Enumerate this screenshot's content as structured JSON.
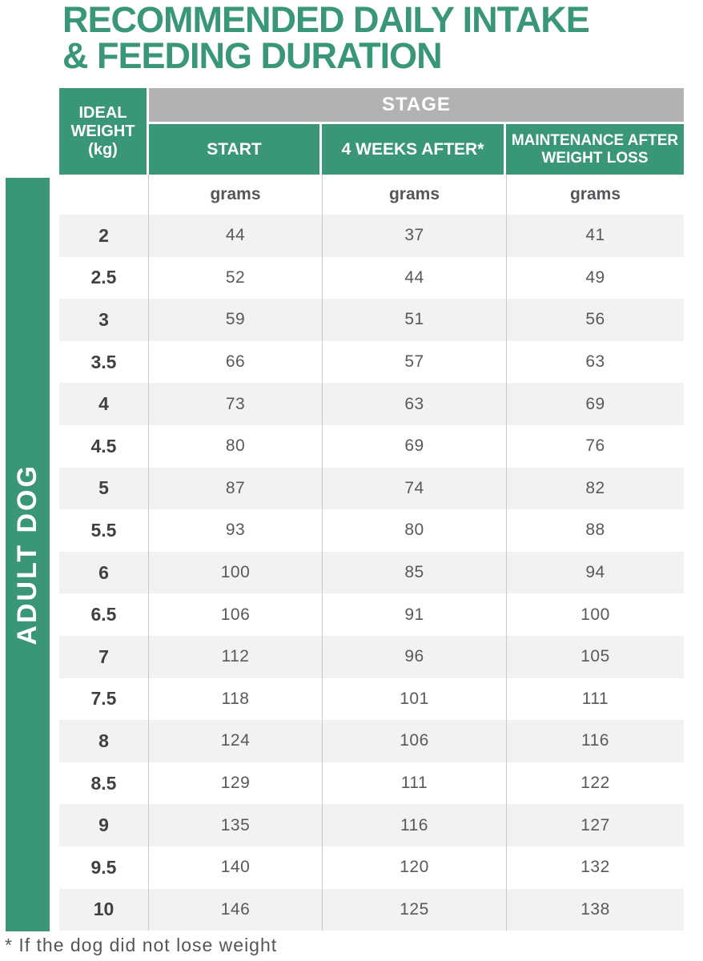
{
  "page": {
    "title_line1": "RECOMMENDED DAILY INTAKE",
    "title_line2": "& FEEDING DURATION",
    "side_label": "ADULT DOG",
    "footnote": "* If the dog did not lose weight"
  },
  "table": {
    "corner_lines": [
      "IDEAL",
      "WEIGHT",
      "(kg)"
    ],
    "stage_label": "STAGE",
    "columns": [
      "START",
      "4 WEEKS AFTER*",
      "MAINTENANCE AFTER WEIGHT LOSS"
    ],
    "unit_row": [
      "grams",
      "grams",
      "grams"
    ],
    "rows": [
      {
        "weight": "2",
        "values": [
          "44",
          "37",
          "41"
        ]
      },
      {
        "weight": "2.5",
        "values": [
          "52",
          "44",
          "49"
        ]
      },
      {
        "weight": "3",
        "values": [
          "59",
          "51",
          "56"
        ]
      },
      {
        "weight": "3.5",
        "values": [
          "66",
          "57",
          "63"
        ]
      },
      {
        "weight": "4",
        "values": [
          "73",
          "63",
          "69"
        ]
      },
      {
        "weight": "4.5",
        "values": [
          "80",
          "69",
          "76"
        ]
      },
      {
        "weight": "5",
        "values": [
          "87",
          "74",
          "82"
        ]
      },
      {
        "weight": "5.5",
        "values": [
          "93",
          "80",
          "88"
        ]
      },
      {
        "weight": "6",
        "values": [
          "100",
          "85",
          "94"
        ]
      },
      {
        "weight": "6.5",
        "values": [
          "106",
          "91",
          "100"
        ]
      },
      {
        "weight": "7",
        "values": [
          "112",
          "96",
          "105"
        ]
      },
      {
        "weight": "7.5",
        "values": [
          "118",
          "101",
          "111"
        ]
      },
      {
        "weight": "8",
        "values": [
          "124",
          "106",
          "116"
        ]
      },
      {
        "weight": "8.5",
        "values": [
          "129",
          "111",
          "122"
        ]
      },
      {
        "weight": "9",
        "values": [
          "135",
          "116",
          "127"
        ]
      },
      {
        "weight": "9.5",
        "values": [
          "140",
          "120",
          "132"
        ]
      },
      {
        "weight": "10",
        "values": [
          "146",
          "125",
          "138"
        ]
      }
    ]
  },
  "colors": {
    "brand_green": "#3A9678",
    "stage_header_gray": "#B2B2B2",
    "alt_row_gray": "#F2F2F2",
    "value_text": "#58595B",
    "weight_text": "#414042"
  },
  "chart_data": {
    "type": "table",
    "title": "RECOMMENDED DAILY INTAKE & FEEDING DURATION",
    "group_label": "ADULT DOG",
    "column_headers": [
      "IDEAL WEIGHT (kg)",
      "STAGE - START (grams)",
      "STAGE - 4 WEEKS AFTER* (grams)",
      "STAGE - MAINTENANCE AFTER WEIGHT LOSS (grams)"
    ],
    "rows": [
      [
        2,
        44,
        37,
        41
      ],
      [
        2.5,
        52,
        44,
        49
      ],
      [
        3,
        59,
        51,
        56
      ],
      [
        3.5,
        66,
        57,
        63
      ],
      [
        4,
        73,
        63,
        69
      ],
      [
        4.5,
        80,
        69,
        76
      ],
      [
        5,
        87,
        74,
        82
      ],
      [
        5.5,
        93,
        80,
        88
      ],
      [
        6,
        100,
        85,
        94
      ],
      [
        6.5,
        106,
        91,
        100
      ],
      [
        7,
        112,
        96,
        105
      ],
      [
        7.5,
        118,
        101,
        111
      ],
      [
        8,
        124,
        106,
        116
      ],
      [
        8.5,
        129,
        111,
        122
      ],
      [
        9,
        135,
        116,
        127
      ],
      [
        9.5,
        140,
        120,
        132
      ],
      [
        10,
        146,
        125,
        138
      ]
    ],
    "footnote": "* If the dog did not lose weight"
  }
}
